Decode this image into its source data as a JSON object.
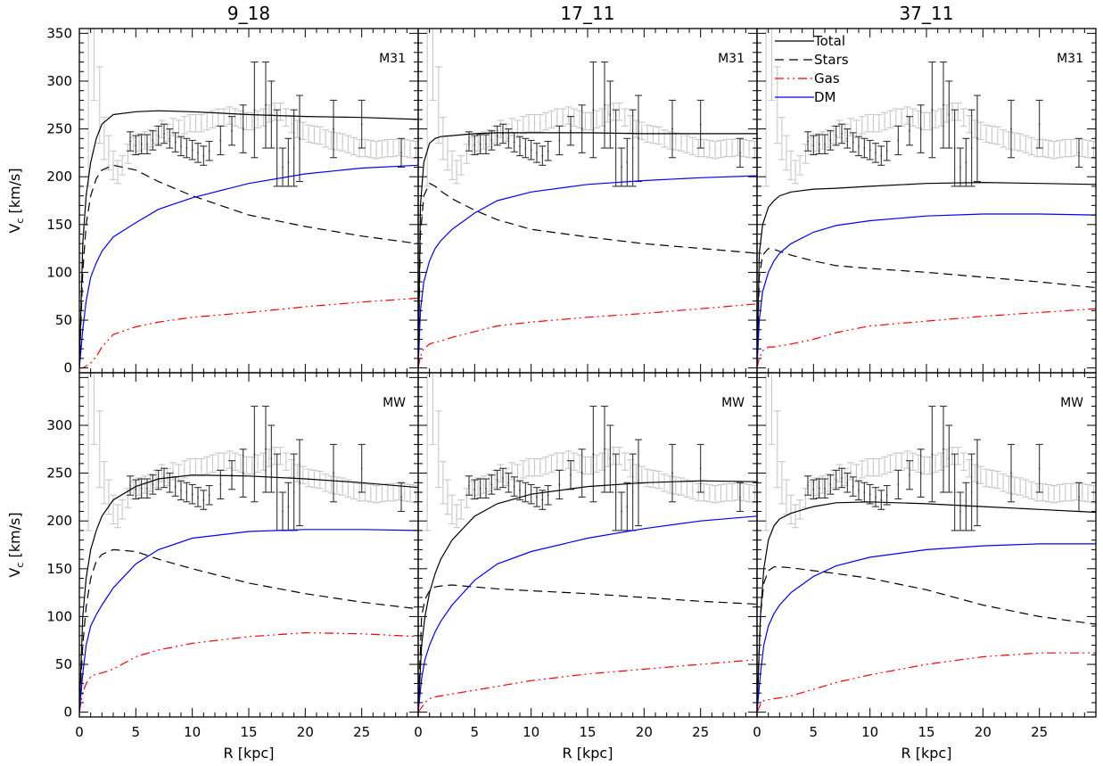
{
  "chart_data": {
    "type": "line",
    "layout": "2 rows x 3 columns, shared axes",
    "column_titles": [
      "9_18",
      "17_11",
      "37_11"
    ],
    "row_labels": [
      "M31",
      "MW"
    ],
    "xlabel": "R [kpc]",
    "ylabel": {
      "main": "V",
      "sub": "c",
      "rest": " [km/s]"
    },
    "xlim": [
      0,
      30
    ],
    "ylim": [
      -5,
      355
    ],
    "x_ticks": [
      "0",
      "5",
      "10",
      "15",
      "20",
      "25"
    ],
    "y_ticks": [
      "0",
      "50",
      "100",
      "150",
      "200",
      "250",
      "300",
      "350"
    ],
    "legend": {
      "placement": "top-left of top-right panel",
      "entries": [
        {
          "name": "Total",
          "color": "#000000",
          "dash": "solid"
        },
        {
          "name": "Stars",
          "color": "#000000",
          "dash": "dashed"
        },
        {
          "name": "Gas",
          "color": "#ff0000",
          "dash": "dash-dot-dot"
        },
        {
          "name": "DM",
          "color": "#0000ff",
          "dash": "solid"
        }
      ]
    },
    "observations": {
      "gray": {
        "color": "#c8c8c8",
        "r": [
          0.8,
          1.3,
          1.8,
          2.2,
          2.6,
          3.0,
          3.4,
          3.8,
          4.3,
          4.8,
          5.3,
          5.8,
          6.3,
          6.8,
          7.3,
          7.8,
          8.3,
          8.8,
          9.3,
          9.8,
          10.3,
          10.8,
          11.3,
          11.8,
          12.3,
          12.8,
          13.3,
          13.8,
          14.3,
          14.8,
          15.3,
          15.8,
          16.3,
          16.8,
          17.3,
          17.8,
          18.3,
          18.8,
          19.3,
          19.8,
          20.3,
          20.8,
          21.3,
          21.8,
          22.3,
          22.8,
          23.3,
          23.8,
          24.3,
          24.8,
          25.3,
          25.8,
          26.3,
          26.8,
          27.3,
          27.8,
          28.3,
          28.8,
          29.3,
          29.8
        ],
        "v": [
          420,
          340,
          275,
          240,
          225,
          212,
          205,
          212,
          224,
          232,
          236,
          238,
          240,
          244,
          250,
          246,
          252,
          250,
          254,
          256,
          256,
          256,
          258,
          260,
          262,
          262,
          264,
          262,
          260,
          258,
          258,
          260,
          262,
          266,
          268,
          268,
          262,
          255,
          250,
          248,
          245,
          244,
          243,
          240,
          238,
          237,
          236,
          234,
          232,
          230,
          230,
          229,
          228,
          229,
          230,
          230,
          231,
          230,
          229,
          228
        ],
        "err": [
          230,
          60,
          40,
          22,
          18,
          15,
          12,
          10,
          10,
          9,
          9,
          9,
          9,
          9,
          9,
          9,
          9,
          9,
          9,
          9,
          9,
          9,
          9,
          9,
          9,
          9,
          9,
          9,
          9,
          9,
          9,
          9,
          9,
          9,
          9,
          9,
          9,
          9,
          9,
          9,
          9,
          9,
          9,
          9,
          9,
          9,
          9,
          9,
          9,
          9,
          9,
          9,
          9,
          9,
          9,
          9,
          9,
          9,
          9,
          9
        ]
      },
      "black": {
        "color": "#333333",
        "r": [
          4.5,
          5.0,
          5.5,
          6.0,
          6.5,
          7.0,
          7.5,
          8.0,
          8.5,
          9.0,
          9.5,
          10.0,
          10.5,
          11.0,
          11.5,
          12.5,
          13.5,
          14.5,
          15.5,
          16.5,
          17.0,
          17.5,
          18.0,
          18.5,
          19.0,
          19.5,
          22.5,
          25.0,
          28.5
        ],
        "v": [
          237,
          233,
          234,
          234,
          238,
          243,
          245,
          240,
          236,
          232,
          230,
          228,
          225,
          222,
          227,
          238,
          248,
          250,
          270,
          275,
          265,
          230,
          210,
          215,
          230,
          240,
          250,
          255,
          225
        ],
        "err": [
          10,
          10,
          10,
          10,
          10,
          10,
          10,
          10,
          10,
          10,
          10,
          10,
          10,
          10,
          10,
          15,
          15,
          25,
          50,
          45,
          35,
          40,
          20,
          25,
          40,
          45,
          30,
          25,
          15
        ]
      }
    },
    "panels": [
      {
        "row": 0,
        "col": 0,
        "label": "M31",
        "r": [
          0,
          0.3,
          0.6,
          1,
          1.5,
          2,
          3,
          5,
          7,
          10,
          15,
          20,
          25,
          30
        ],
        "total": [
          0,
          130,
          180,
          215,
          240,
          255,
          265,
          268,
          269,
          268,
          265,
          263,
          262,
          260
        ],
        "stars": [
          0,
          100,
          150,
          180,
          198,
          207,
          212,
          207,
          195,
          180,
          160,
          148,
          138,
          130
        ],
        "gas": [
          0,
          0,
          2,
          5,
          12,
          22,
          35,
          43,
          48,
          53,
          58,
          64,
          69,
          73
        ],
        "dm": [
          0,
          40,
          70,
          95,
          110,
          122,
          137,
          152,
          166,
          178,
          193,
          203,
          209,
          212
        ]
      },
      {
        "row": 0,
        "col": 1,
        "label": "M31",
        "r": [
          0,
          0.2,
          0.5,
          1,
          1.5,
          2,
          3,
          5,
          7,
          10,
          15,
          20,
          25,
          30
        ],
        "total": [
          0,
          170,
          215,
          235,
          240,
          242,
          243,
          245,
          246,
          246,
          246,
          245,
          245,
          245
        ],
        "stars": [
          0,
          140,
          180,
          193,
          190,
          185,
          177,
          165,
          155,
          145,
          137,
          130,
          125,
          120
        ],
        "gas": [
          0,
          12,
          20,
          25,
          27,
          28,
          32,
          38,
          44,
          48,
          53,
          57,
          62,
          67
        ],
        "dm": [
          0,
          60,
          90,
          112,
          125,
          133,
          145,
          162,
          175,
          184,
          192,
          196,
          199,
          201
        ]
      },
      {
        "row": 0,
        "col": 2,
        "label": "M31",
        "r": [
          0,
          0.2,
          0.5,
          1,
          1.5,
          2,
          3,
          5,
          7,
          10,
          15,
          20,
          25,
          30
        ],
        "total": [
          0,
          120,
          150,
          168,
          175,
          180,
          184,
          187,
          188,
          190,
          193,
          194,
          193,
          192
        ],
        "stars": [
          0,
          95,
          118,
          125,
          124,
          122,
          118,
          112,
          107,
          104,
          100,
          95,
          90,
          84
        ],
        "gas": [
          0,
          10,
          18,
          22,
          22,
          23,
          25,
          30,
          37,
          44,
          49,
          54,
          58,
          62
        ],
        "dm": [
          0,
          50,
          80,
          100,
          112,
          120,
          130,
          142,
          149,
          154,
          159,
          161,
          161,
          160
        ]
      },
      {
        "row": 1,
        "col": 0,
        "label": "MW",
        "r": [
          0,
          0.3,
          0.6,
          1,
          1.5,
          2,
          3,
          5,
          7,
          10,
          15,
          20,
          25,
          30
        ],
        "total": [
          0,
          100,
          140,
          170,
          190,
          205,
          222,
          236,
          244,
          248,
          247,
          244,
          240,
          235
        ],
        "stars": [
          0,
          70,
          110,
          140,
          158,
          165,
          170,
          168,
          160,
          150,
          135,
          124,
          115,
          108
        ],
        "gas": [
          0,
          20,
          30,
          37,
          40,
          41,
          45,
          58,
          65,
          72,
          79,
          83,
          82,
          79
        ],
        "dm": [
          0,
          40,
          70,
          90,
          102,
          112,
          130,
          155,
          170,
          182,
          189,
          191,
          191,
          190
        ]
      },
      {
        "row": 1,
        "col": 1,
        "label": "MW",
        "r": [
          0,
          0.3,
          0.6,
          1,
          1.5,
          2,
          3,
          5,
          7,
          10,
          15,
          20,
          25,
          30
        ],
        "total": [
          0,
          70,
          100,
          125,
          145,
          160,
          180,
          205,
          218,
          228,
          236,
          240,
          242,
          241
        ],
        "stars": [
          0,
          100,
          118,
          127,
          131,
          132,
          133,
          131,
          129,
          127,
          124,
          120,
          116,
          113
        ],
        "gas": [
          0,
          5,
          10,
          14,
          16,
          17,
          19,
          23,
          27,
          33,
          40,
          45,
          50,
          55
        ],
        "dm": [
          0,
          35,
          55,
          70,
          84,
          95,
          112,
          138,
          155,
          168,
          182,
          192,
          200,
          205
        ]
      },
      {
        "row": 1,
        "col": 2,
        "label": "MW",
        "r": [
          0,
          0.3,
          0.6,
          1,
          1.5,
          2,
          3,
          5,
          7,
          10,
          15,
          20,
          25,
          30
        ],
        "total": [
          0,
          100,
          150,
          180,
          195,
          202,
          208,
          215,
          219,
          220,
          218,
          215,
          212,
          209
        ],
        "stars": [
          0,
          100,
          135,
          148,
          152,
          152,
          151,
          148,
          145,
          140,
          128,
          112,
          100,
          92
        ],
        "gas": [
          0,
          8,
          12,
          13,
          14,
          15,
          17,
          24,
          31,
          39,
          50,
          58,
          62,
          62
        ],
        "dm": [
          0,
          40,
          70,
          90,
          103,
          112,
          125,
          142,
          153,
          162,
          170,
          174,
          176,
          176
        ]
      }
    ]
  }
}
